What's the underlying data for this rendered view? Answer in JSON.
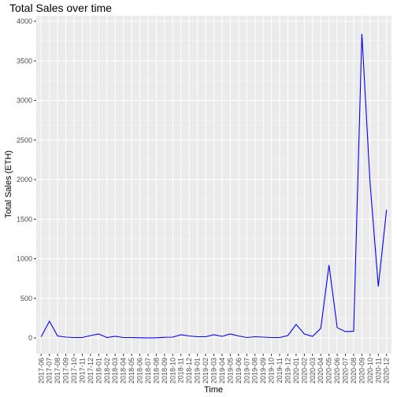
{
  "chart_data": {
    "type": "line",
    "title": "Total Sales over time",
    "x_label": "Time",
    "y_label": "Total Sales (ETH)",
    "categories": [
      "2017-06",
      "2017-07",
      "2017-08",
      "2017-09",
      "2017-10",
      "2017-11",
      "2017-12",
      "2018-01",
      "2018-02",
      "2018-03",
      "2018-04",
      "2018-05",
      "2018-06",
      "2018-07",
      "2018-08",
      "2018-09",
      "2018-10",
      "2018-11",
      "2018-12",
      "2019-01",
      "2019-02",
      "2019-03",
      "2019-04",
      "2019-05",
      "2019-06",
      "2019-07",
      "2019-08",
      "2019-09",
      "2019-10",
      "2019-11",
      "2019-12",
      "2020-01",
      "2020-02",
      "2020-03",
      "2020-04",
      "2020-05",
      "2020-06",
      "2020-07",
      "2020-08",
      "2020-09",
      "2020-10",
      "2020-11",
      "2020-12"
    ],
    "series": [
      {
        "name": "Total Sales",
        "color": "#0000ff",
        "values": [
          15,
          210,
          25,
          10,
          5,
          5,
          30,
          50,
          5,
          20,
          5,
          5,
          2,
          0,
          2,
          8,
          10,
          40,
          25,
          15,
          15,
          40,
          20,
          50,
          25,
          5,
          15,
          10,
          5,
          5,
          30,
          170,
          50,
          20,
          120,
          920,
          130,
          80,
          85,
          3840,
          1950,
          650,
          1620
        ]
      }
    ],
    "ylim": [
      -199,
      4070
    ],
    "yticks": [
      0,
      500,
      1000,
      1500,
      2000,
      2500,
      3000,
      3500,
      4000
    ],
    "grid": true
  }
}
